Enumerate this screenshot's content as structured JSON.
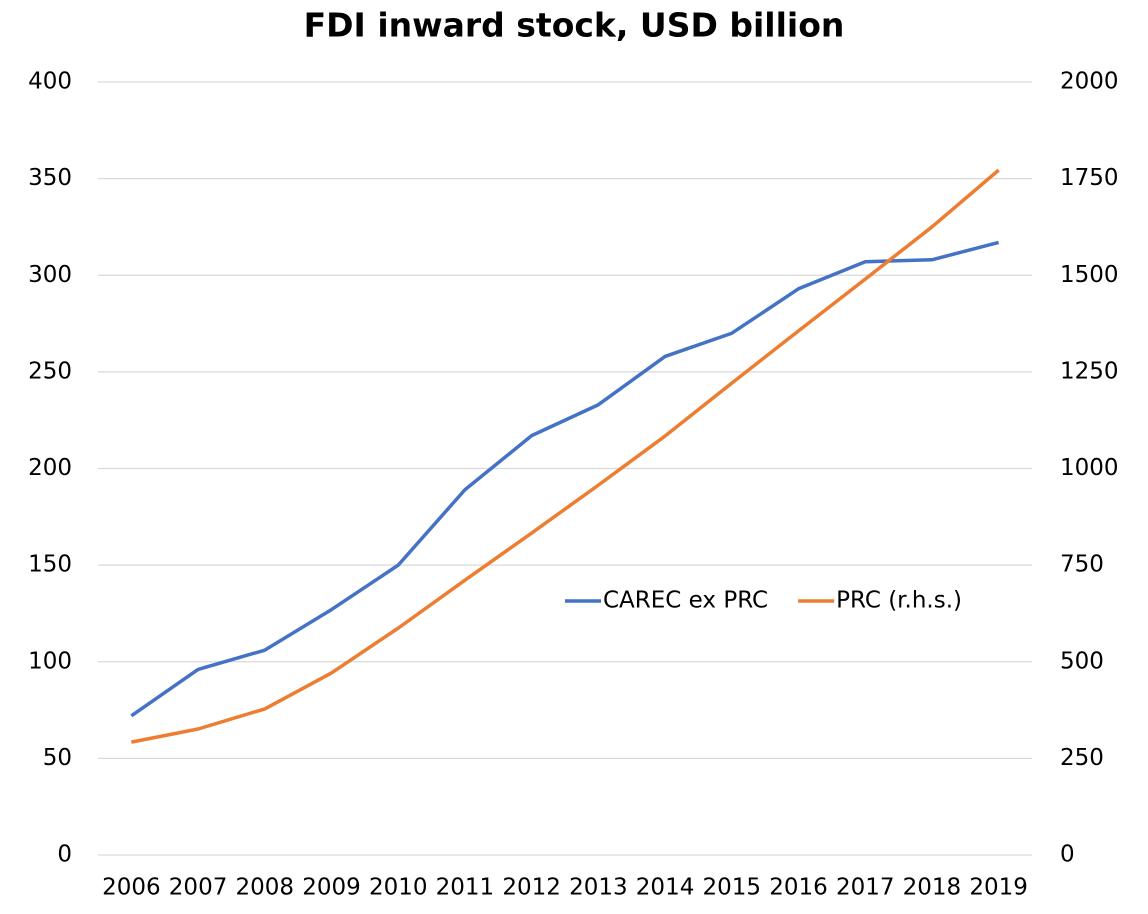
{
  "chart_data": {
    "type": "line",
    "title": "FDI inward stock, USD billion",
    "categories": [
      "2006",
      "2007",
      "2008",
      "2009",
      "2010",
      "2011",
      "2012",
      "2013",
      "2014",
      "2015",
      "2016",
      "2017",
      "2018",
      "2019"
    ],
    "series": [
      {
        "name": "CAREC ex PRC",
        "color": "#4472c4",
        "values": [
          72,
          96,
          106,
          127,
          150,
          189,
          217,
          233,
          258,
          270,
          293,
          307,
          308,
          317
        ]
      },
      {
        "name": "PRC (r.h.s.)",
        "color": "#ed7d31",
        "axis": "y2",
        "values": [
          292,
          326,
          378,
          471,
          587,
          711,
          833,
          957,
          1084,
          1221,
          1356,
          1490,
          1625,
          1772
        ]
      }
    ],
    "ylim": [
      0,
      400
    ],
    "yticks": [
      0,
      50,
      100,
      150,
      200,
      250,
      300,
      350,
      400
    ],
    "y2lim": [
      0,
      2000
    ],
    "y2ticks": [
      0,
      250,
      500,
      750,
      1000,
      1250,
      1500,
      1750,
      2000
    ],
    "grid": true,
    "legend": "right"
  }
}
